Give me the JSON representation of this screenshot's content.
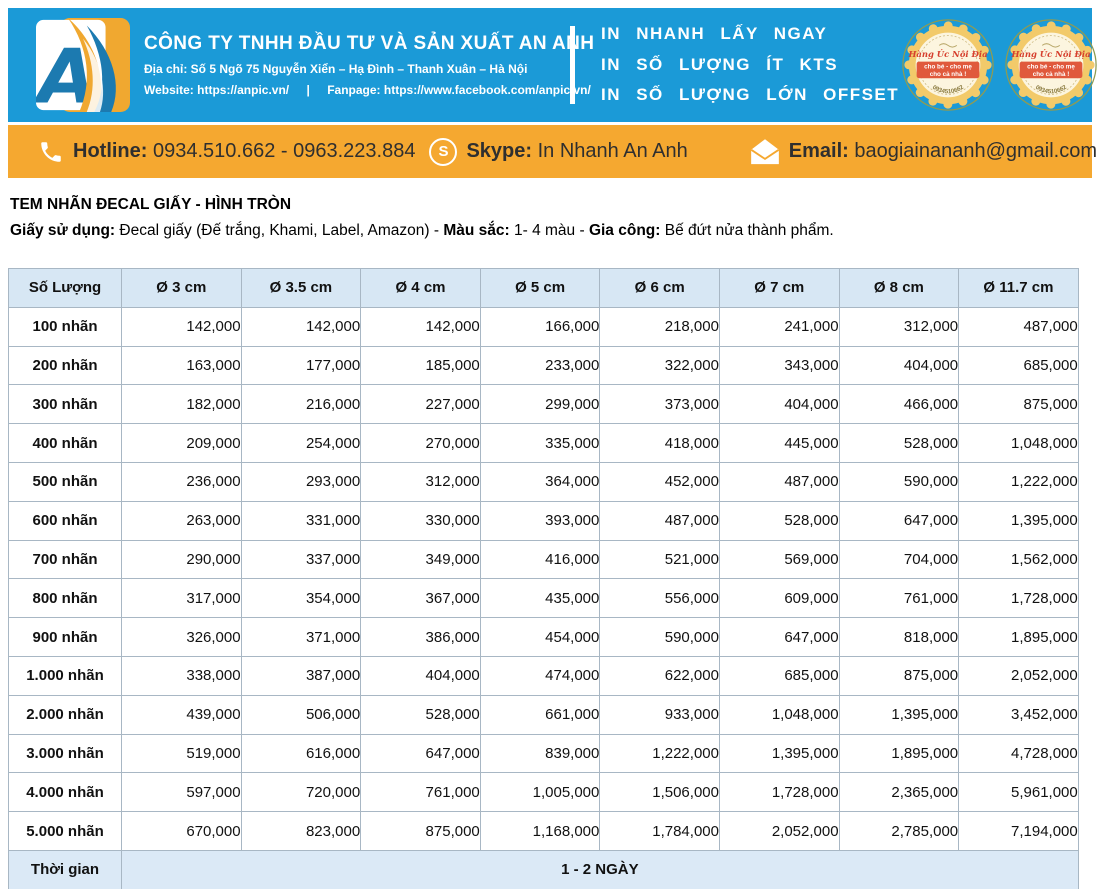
{
  "colors": {
    "header_blue": "#1b9ad7",
    "contact_yellow": "#f5a830",
    "table_header_bg": "#d7e7f4",
    "table_border": "#a8b7c4",
    "badge_yellow": "#f2ca6a",
    "badge_cream": "#fcf5df",
    "badge_band_red": "#e0593c",
    "logo_blue": "#1c7ab0",
    "logo_orange": "#f0a830"
  },
  "header": {
    "company_name": "CÔNG TY TNHH ĐẦU TƯ VÀ SẢN XUẤT AN ANH",
    "address": "Địa chỉ: Số 5 Ngõ 75 Nguyễn Xiển – Hạ Đình – Thanh Xuân – Hà Nội",
    "website_label": "Website:",
    "website": "https://anpic.vn/",
    "separator": "|",
    "fanpage_label": "Fanpage:",
    "fanpage": "https://www.facebook.com/anpic.vn/",
    "promo_line1": "IN NHANH LẤY NGAY",
    "promo_line2": "IN SỐ LƯỢNG ÍT KTS",
    "promo_line3": "IN SỐ LƯỢNG LỚN OFFSET",
    "badge": {
      "title": "Hàng Úc Nội Địa",
      "line1": "cho bé - cho mẹ",
      "line2": "cho cả nhà !",
      "phone": "0934510662"
    }
  },
  "contact_bar": {
    "hotline_label": "Hotline",
    "hotline": "0934.510.662 - 0963.223.884",
    "skype_label": "Skype",
    "skype": "In Nhanh An Anh",
    "email_label": "Email",
    "email": "baogiainananh@gmail.com"
  },
  "document": {
    "title": "TEM NHÃN ĐECAL GIẤY - HÌNH TRÒN",
    "subtitle_segments": [
      {
        "bold": true,
        "text": "Giấy sử dụng:"
      },
      {
        "bold": false,
        "text": " Đecal giấy (Đế trắng, Khami, Label, Amazon) - "
      },
      {
        "bold": true,
        "text": "Màu sắc:"
      },
      {
        "bold": false,
        "text": "  1- 4 màu - "
      },
      {
        "bold": true,
        "text": "Gia công:"
      },
      {
        "bold": false,
        "text": " Bế đứt nửa thành phẩm."
      }
    ]
  },
  "table": {
    "headers": [
      "Số Lượng",
      "Ø 3 cm",
      "Ø 3.5 cm",
      "Ø 4 cm",
      "Ø 5 cm",
      "Ø 6 cm",
      "Ø 7 cm",
      "Ø 8 cm",
      "Ø 11.7 cm"
    ],
    "rows": [
      {
        "label": "100 nhãn",
        "values": [
          "142,000",
          "142,000",
          "142,000",
          "166,000",
          "218,000",
          "241,000",
          "312,000",
          "487,000"
        ]
      },
      {
        "label": "200 nhãn",
        "values": [
          "163,000",
          "177,000",
          "185,000",
          "233,000",
          "322,000",
          "343,000",
          "404,000",
          "685,000"
        ]
      },
      {
        "label": "300 nhãn",
        "values": [
          "182,000",
          "216,000",
          "227,000",
          "299,000",
          "373,000",
          "404,000",
          "466,000",
          "875,000"
        ]
      },
      {
        "label": "400 nhãn",
        "values": [
          "209,000",
          "254,000",
          "270,000",
          "335,000",
          "418,000",
          "445,000",
          "528,000",
          "1,048,000"
        ]
      },
      {
        "label": "500 nhãn",
        "values": [
          "236,000",
          "293,000",
          "312,000",
          "364,000",
          "452,000",
          "487,000",
          "590,000",
          "1,222,000"
        ]
      },
      {
        "label": "600 nhãn",
        "values": [
          "263,000",
          "331,000",
          "330,000",
          "393,000",
          "487,000",
          "528,000",
          "647,000",
          "1,395,000"
        ]
      },
      {
        "label": "700 nhãn",
        "values": [
          "290,000",
          "337,000",
          "349,000",
          "416,000",
          "521,000",
          "569,000",
          "704,000",
          "1,562,000"
        ]
      },
      {
        "label": "800 nhãn",
        "values": [
          "317,000",
          "354,000",
          "367,000",
          "435,000",
          "556,000",
          "609,000",
          "761,000",
          "1,728,000"
        ]
      },
      {
        "label": "900 nhãn",
        "values": [
          "326,000",
          "371,000",
          "386,000",
          "454,000",
          "590,000",
          "647,000",
          "818,000",
          "1,895,000"
        ]
      },
      {
        "label": "1.000 nhãn",
        "values": [
          "338,000",
          "387,000",
          "404,000",
          "474,000",
          "622,000",
          "685,000",
          "875,000",
          "2,052,000"
        ]
      },
      {
        "label": "2.000 nhãn",
        "values": [
          "439,000",
          "506,000",
          "528,000",
          "661,000",
          "933,000",
          "1,048,000",
          "1,395,000",
          "3,452,000"
        ]
      },
      {
        "label": "3.000 nhãn",
        "values": [
          "519,000",
          "616,000",
          "647,000",
          "839,000",
          "1,222,000",
          "1,395,000",
          "1,895,000",
          "4,728,000"
        ]
      },
      {
        "label": "4.000 nhãn",
        "values": [
          "597,000",
          "720,000",
          "761,000",
          "1,005,000",
          "1,506,000",
          "1,728,000",
          "2,365,000",
          "5,961,000"
        ]
      },
      {
        "label": "5.000 nhãn",
        "values": [
          "670,000",
          "823,000",
          "875,000",
          "1,168,000",
          "1,784,000",
          "2,052,000",
          "2,785,000",
          "7,194,000"
        ]
      }
    ],
    "footer": {
      "label": "Thời gian",
      "value": "1 - 2 NGÀY"
    }
  }
}
